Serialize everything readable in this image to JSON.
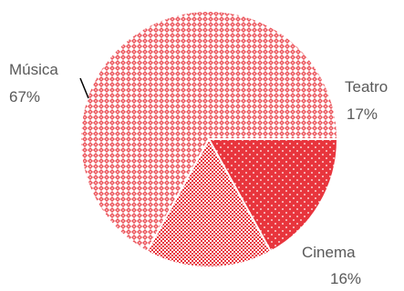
{
  "chart_data": {
    "type": "pie",
    "title": "",
    "slices": [
      {
        "label": "Teatro",
        "value": 17,
        "display": "17%",
        "color": "#e8353d",
        "pattern": "dots"
      },
      {
        "label": "Cinema",
        "value": 16,
        "display": "16%",
        "color": "#e8353d",
        "pattern": "checker"
      },
      {
        "label": "Música",
        "value": 67,
        "display": "67%",
        "color": "#e8353d",
        "pattern": "diamond"
      }
    ],
    "legend": "none",
    "data_labels": "outside"
  }
}
